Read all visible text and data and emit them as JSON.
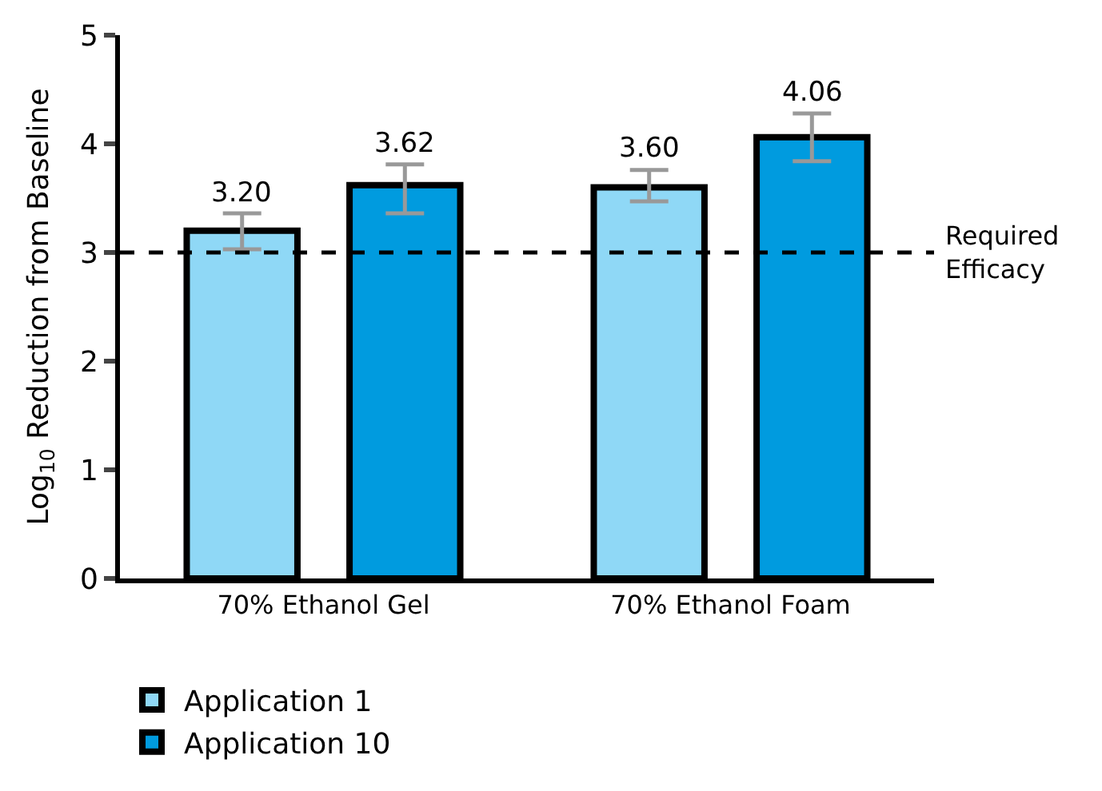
{
  "chart_data": {
    "type": "bar",
    "ylabel": "Log$_{10}$ Reduction from Baseline",
    "categories": [
      "70% Ethanol Gel",
      "70% Ethanol Foam"
    ],
    "series": [
      {
        "name": "Application 1",
        "color": "#8fd8f6",
        "values": [
          3.2,
          3.6
        ],
        "value_labels": [
          "3.20",
          "3.60"
        ],
        "errors": [
          [
            3.03,
            3.36
          ],
          [
            3.47,
            3.76
          ]
        ]
      },
      {
        "name": "Application 10",
        "color": "#009bdf",
        "values": [
          3.62,
          4.06
        ],
        "value_labels": [
          "3.62",
          "4.06"
        ],
        "errors": [
          [
            3.36,
            3.81
          ],
          [
            3.84,
            4.28
          ]
        ]
      }
    ],
    "ylim": [
      0,
      5
    ],
    "yticks": [
      0,
      1,
      2,
      3,
      4,
      5
    ],
    "legend": "bottom left",
    "ref_lines": [
      {
        "axis": "y",
        "value": 3,
        "label": "Required Efficacy",
        "color": "#000000",
        "line_style": "dashed"
      }
    ]
  }
}
